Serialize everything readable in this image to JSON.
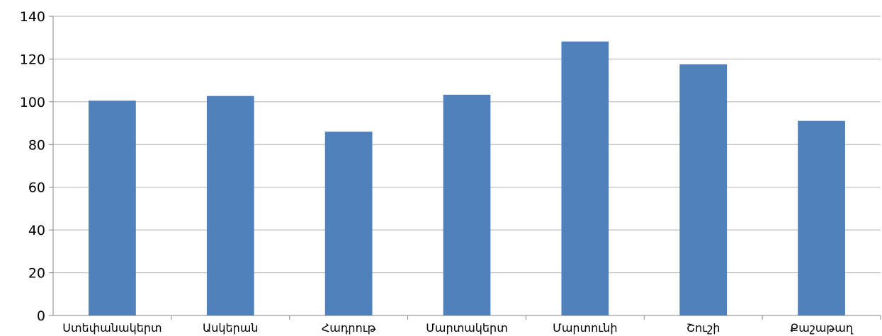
{
  "chart_data": {
    "type": "bar",
    "categories": [
      "Ստեփանակերտ",
      "Ասկերան",
      "Հադրութ",
      "Մարտակերտ",
      "Մարտունի",
      "Շուշի",
      "Քաշաթաղ"
    ],
    "values": [
      100.5,
      102.7,
      86.0,
      103.3,
      128.2,
      117.5,
      91.1
    ],
    "ylim": [
      0,
      140
    ],
    "yticks": [
      0,
      20,
      40,
      60,
      80,
      100,
      120,
      140
    ],
    "grid": true,
    "legend": "none",
    "title": "",
    "xlabel": "",
    "ylabel": "",
    "colors": {
      "bar": "#4f81bd",
      "grid": "#b3b3b3",
      "axis": "#868686",
      "text": "#000000"
    }
  }
}
